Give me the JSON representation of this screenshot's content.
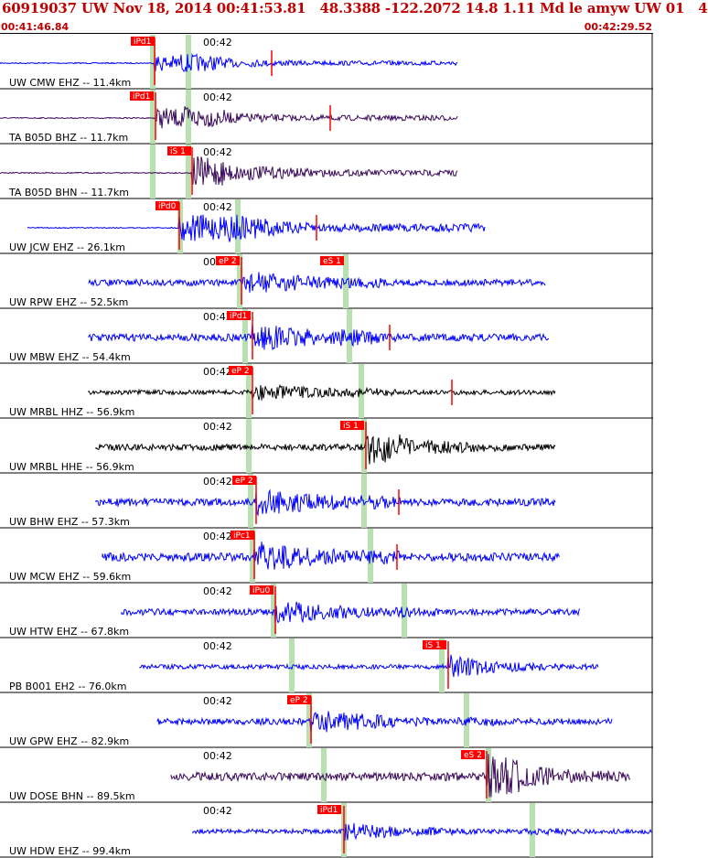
{
  "header": {
    "title": "60919037 UW Nov 18, 2014 00:41:53.81   48.3388 -122.2072 14.8 1.11 Md le amyw UW 01   4",
    "start_time": "00:41:46.84",
    "end_time": "00:42:29.52"
  },
  "colors": {
    "header_text": "#c00000",
    "trace_blue": "#0000ff",
    "trace_black": "#000000",
    "trace_purple": "#3a0a5a",
    "pick_marker": "#ff0000",
    "theoretical_band": "#b8e0b0",
    "divider": "#000000"
  },
  "minute_label": "00:42",
  "stations": [
    {
      "label": "UW CMW EHZ -- 11.4km",
      "color": "blue",
      "pick": "iPd1",
      "pick2": ""
    },
    {
      "label": "TA B05D BHZ -- 11.7km",
      "color": "purple",
      "pick": "iPd1",
      "pick2": ""
    },
    {
      "label": "TA B05D BHN -- 11.7km",
      "color": "purple",
      "pick": "iS 1",
      "pick2": ""
    },
    {
      "label": "UW JCW EHZ -- 26.1km",
      "color": "blue",
      "pick": "iPd0",
      "pick2": ""
    },
    {
      "label": "UW RPW EHZ -- 52.5km",
      "color": "blue",
      "pick": "eP 2",
      "pick2": "eS 1"
    },
    {
      "label": "UW MBW EHZ -- 54.4km",
      "color": "blue",
      "pick": "iPd1",
      "pick2": ""
    },
    {
      "label": "UW MRBL HHZ -- 56.9km",
      "color": "black",
      "pick": "eP 2",
      "pick2": ""
    },
    {
      "label": "UW MRBL HHE -- 56.9km",
      "color": "black",
      "pick": "iS 1",
      "pick2": ""
    },
    {
      "label": "UW BHW EHZ -- 57.3km",
      "color": "blue",
      "pick": "eP 2",
      "pick2": ""
    },
    {
      "label": "UW MCW EHZ -- 59.6km",
      "color": "blue",
      "pick": "iPc1",
      "pick2": ""
    },
    {
      "label": "UW HTW EHZ -- 67.8km",
      "color": "blue",
      "pick": "iPu0",
      "pick2": ""
    },
    {
      "label": "PB B001 EH2 -- 76.0km",
      "color": "blue",
      "pick": "iS 1",
      "pick2": ""
    },
    {
      "label": "UW GPW EHZ -- 82.9km",
      "color": "blue",
      "pick": "eP 2",
      "pick2": ""
    },
    {
      "label": "UW DOSE BHN -- 89.5km",
      "color": "purple",
      "pick": "eS 2",
      "pick2": ""
    },
    {
      "label": "UW HDW EHZ -- 99.4km",
      "color": "blue",
      "pick": "iPd1",
      "pick2": ""
    }
  ]
}
